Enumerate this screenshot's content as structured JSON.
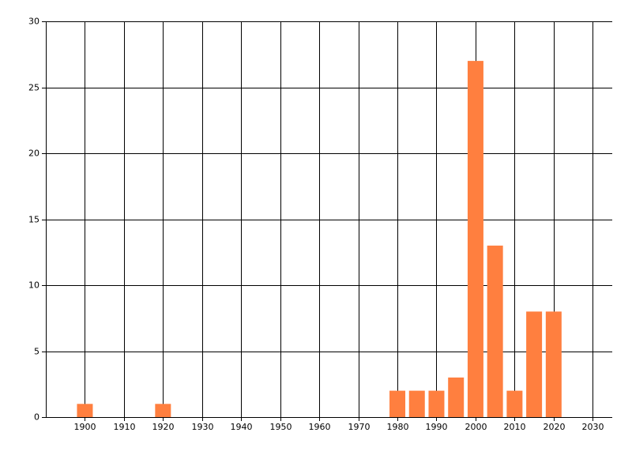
{
  "chart_data": {
    "type": "bar",
    "x": [
      1900,
      1920,
      1980,
      1985,
      1990,
      1995,
      2000,
      2005,
      2010,
      2015,
      2020
    ],
    "values": [
      1,
      1,
      2,
      2,
      2,
      3,
      27,
      13,
      2,
      8,
      8
    ],
    "color": "#ff7f3f",
    "xlim": [
      1890,
      2035
    ],
    "xticks": [
      1900,
      1910,
      1920,
      1930,
      1940,
      1950,
      1960,
      1970,
      1980,
      1990,
      2000,
      2010,
      2020,
      2030
    ],
    "ylim": [
      0,
      30
    ],
    "yticks": [
      0,
      5,
      10,
      15,
      20,
      25,
      30
    ],
    "grid": true
  }
}
